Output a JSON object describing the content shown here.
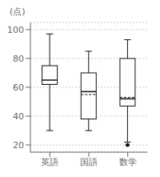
{
  "chart_data": {
    "type": "box",
    "ylabel": "(点)",
    "categories": [
      "英語",
      "国語",
      "数学"
    ],
    "boxes": [
      {
        "q1": 62,
        "median": 65,
        "q3": 75,
        "whislo": 30,
        "whishi": 97,
        "fliers": []
      },
      {
        "q1": 38,
        "median": 57,
        "q3": 70,
        "whislo": 30,
        "whishi": 85,
        "fliers": []
      },
      {
        "q1": 47,
        "median": 52,
        "q3": 80,
        "whislo": 22,
        "whishi": 93,
        "fliers": [
          20
        ]
      }
    ],
    "means": [
      62,
      55,
      53
    ],
    "ylim": [
      15,
      105
    ],
    "yticks": [
      20,
      40,
      60,
      80,
      100
    ],
    "grid": true,
    "color": "#111111"
  }
}
